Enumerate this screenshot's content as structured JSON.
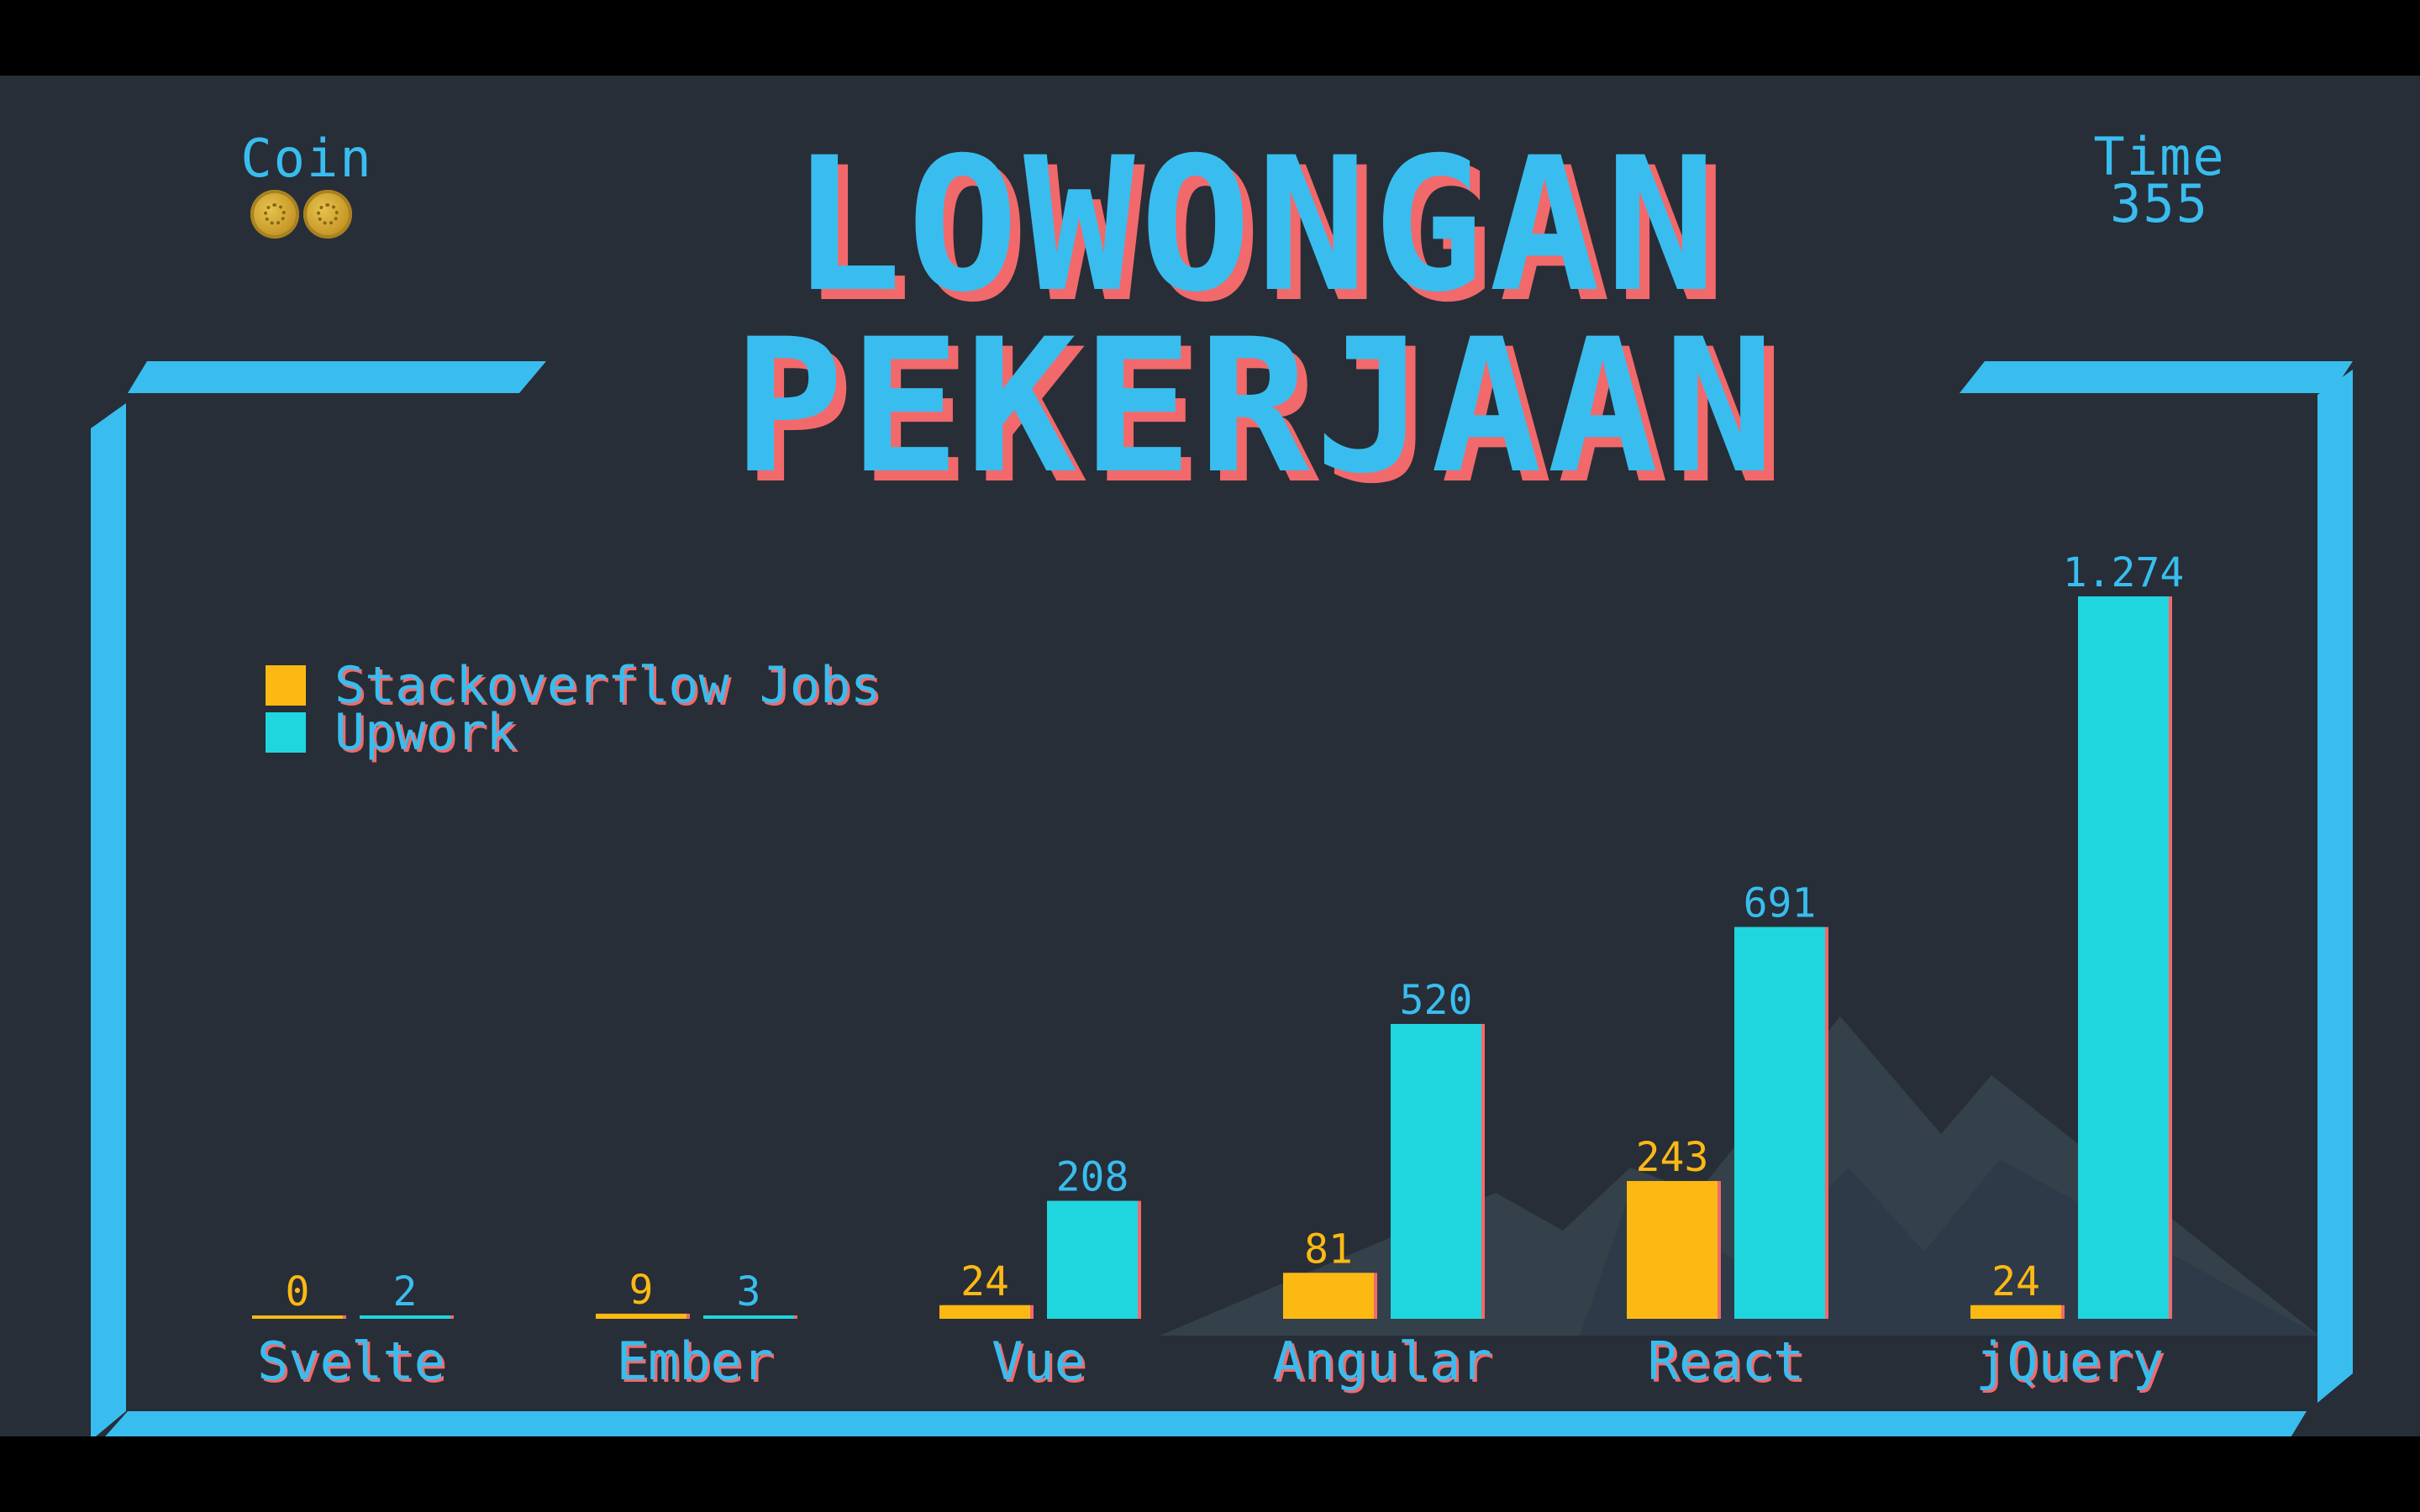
{
  "hud": {
    "coin_label": "Coin",
    "coin_icons": [
      "coin-icon",
      "coin-icon"
    ],
    "time_label": "Time",
    "time_value": "355"
  },
  "title": {
    "line1": "LOWONGAN",
    "line2": "PEKERJAAN"
  },
  "colors": {
    "background": "#272e37",
    "frame": "#39bdef",
    "text": "#39bdef",
    "text_shadow": "#f2696b",
    "stackoverflow": "#fdb913",
    "upwork": "#1fd6df",
    "mountain": "#3a4751"
  },
  "chart_data": {
    "type": "bar",
    "categories": [
      "Svelte",
      "Ember",
      "Vue",
      "Angular",
      "React",
      "jQuery"
    ],
    "series": [
      {
        "name": "Stackoverflow Jobs",
        "color": "#fdb913",
        "values": [
          0,
          9,
          24,
          81,
          243,
          24
        ],
        "labels": [
          "0",
          "9",
          "24",
          "81",
          "243",
          "24"
        ]
      },
      {
        "name": "Upwork",
        "color": "#1fd6df",
        "values": [
          2,
          3,
          208,
          520,
          691,
          1274
        ],
        "labels": [
          "2",
          "3",
          "208",
          "520",
          "691",
          "1.274"
        ]
      }
    ],
    "ylim": [
      0,
      1274
    ],
    "grid": false,
    "legend": "top-left"
  }
}
